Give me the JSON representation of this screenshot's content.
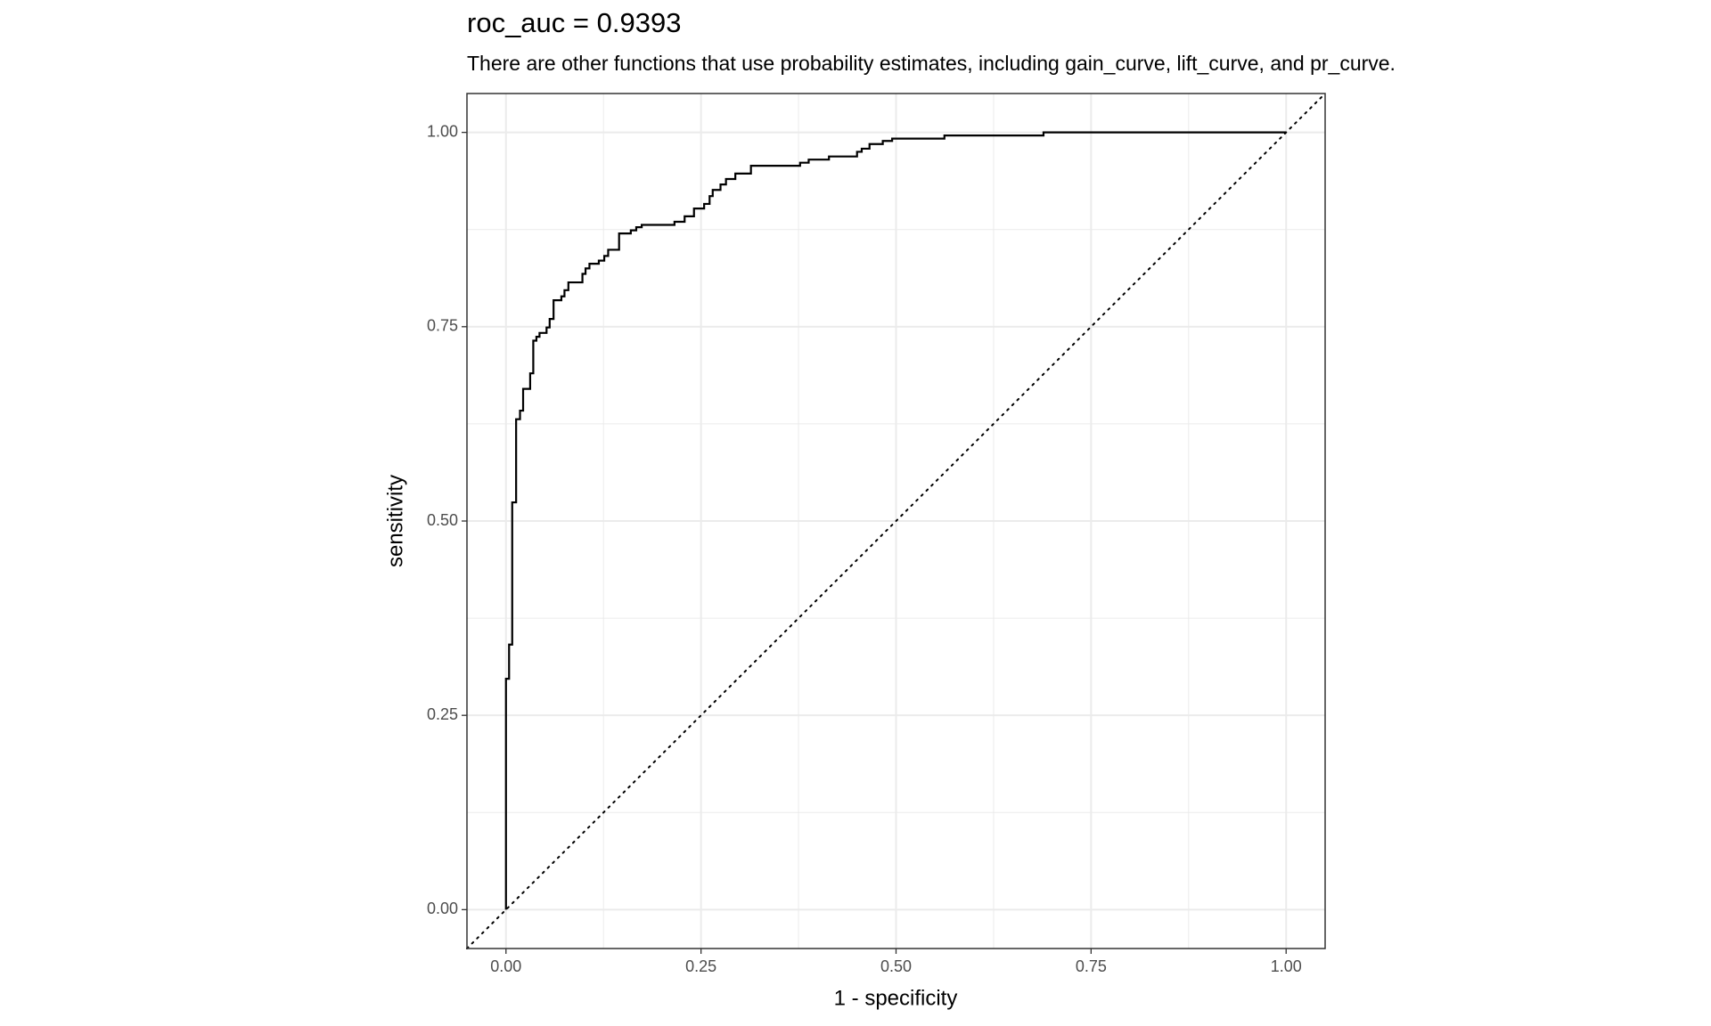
{
  "chart_data": {
    "type": "line",
    "title": "roc_auc = 0.9393",
    "subtitle": "There are other functions that use probability estimates, including gain_curve, lift_curve, and pr_curve.",
    "x_label": "1 - specificity",
    "y_label": "sensitivity",
    "color": "#000000",
    "grid": true,
    "x": [
      0,
      0,
      0.004,
      0.004,
      0.008,
      0.008,
      0.013,
      0.013,
      0.018,
      0.018,
      0.022,
      0.022,
      0.031,
      0.031,
      0.035,
      0.035,
      0.039,
      0.039,
      0.043,
      0.043,
      0.052,
      0.052,
      0.056,
      0.056,
      0.061,
      0.061,
      0.071,
      0.071,
      0.075,
      0.075,
      0.08,
      0.08,
      0.098,
      0.098,
      0.102,
      0.102,
      0.107,
      0.107,
      0.119,
      0.119,
      0.126,
      0.126,
      0.131,
      0.131,
      0.145,
      0.145,
      0.16,
      0.16,
      0.167,
      0.167,
      0.174,
      0.174,
      0.216,
      0.216,
      0.229,
      0.229,
      0.241,
      0.241,
      0.254,
      0.254,
      0.261,
      0.261,
      0.265,
      0.265,
      0.275,
      0.275,
      0.282,
      0.282,
      0.294,
      0.294,
      0.314,
      0.314,
      0.377,
      0.377,
      0.388,
      0.388,
      0.414,
      0.414,
      0.45,
      0.45,
      0.456,
      0.456,
      0.466,
      0.466,
      0.483,
      0.483,
      0.495,
      0.495,
      0.562,
      0.562,
      0.689,
      0.689,
      1
    ],
    "values": [
      0,
      0.297,
      0.297,
      0.341,
      0.341,
      0.524,
      0.524,
      0.631,
      0.631,
      0.642,
      0.642,
      0.67,
      0.67,
      0.69,
      0.69,
      0.732,
      0.732,
      0.737,
      0.737,
      0.742,
      0.742,
      0.749,
      0.749,
      0.76,
      0.76,
      0.784,
      0.784,
      0.789,
      0.789,
      0.797,
      0.797,
      0.807,
      0.807,
      0.818,
      0.818,
      0.825,
      0.825,
      0.831,
      0.831,
      0.835,
      0.835,
      0.841,
      0.841,
      0.849,
      0.849,
      0.87,
      0.87,
      0.874,
      0.874,
      0.878,
      0.878,
      0.881,
      0.881,
      0.885,
      0.885,
      0.892,
      0.892,
      0.902,
      0.902,
      0.908,
      0.908,
      0.918,
      0.918,
      0.926,
      0.926,
      0.933,
      0.933,
      0.94,
      0.94,
      0.947,
      0.947,
      0.957,
      0.957,
      0.961,
      0.961,
      0.965,
      0.965,
      0.969,
      0.969,
      0.975,
      0.975,
      0.979,
      0.979,
      0.985,
      0.985,
      0.989,
      0.989,
      0.992,
      0.992,
      0.996,
      0.996,
      1,
      1
    ],
    "xlim": [
      -0.05,
      1.05
    ],
    "ylim": [
      -0.05,
      1.05
    ],
    "xticks": [
      {
        "value": 0,
        "label": "0.00"
      },
      {
        "value": 0.25,
        "label": "0.25"
      },
      {
        "value": 0.5,
        "label": "0.50"
      },
      {
        "value": 0.75,
        "label": "0.75"
      },
      {
        "value": 1,
        "label": "1.00"
      }
    ],
    "yticks": [
      {
        "value": 0,
        "label": "0.00"
      },
      {
        "value": 0.25,
        "label": "0.25"
      },
      {
        "value": 0.5,
        "label": "0.50"
      },
      {
        "value": 0.75,
        "label": "0.75"
      },
      {
        "value": 1,
        "label": "1.00"
      }
    ],
    "xminorticks": [
      0.125,
      0.375,
      0.625,
      0.875
    ],
    "yminorticks": [
      0.125,
      0.375,
      0.625,
      0.875
    ]
  }
}
